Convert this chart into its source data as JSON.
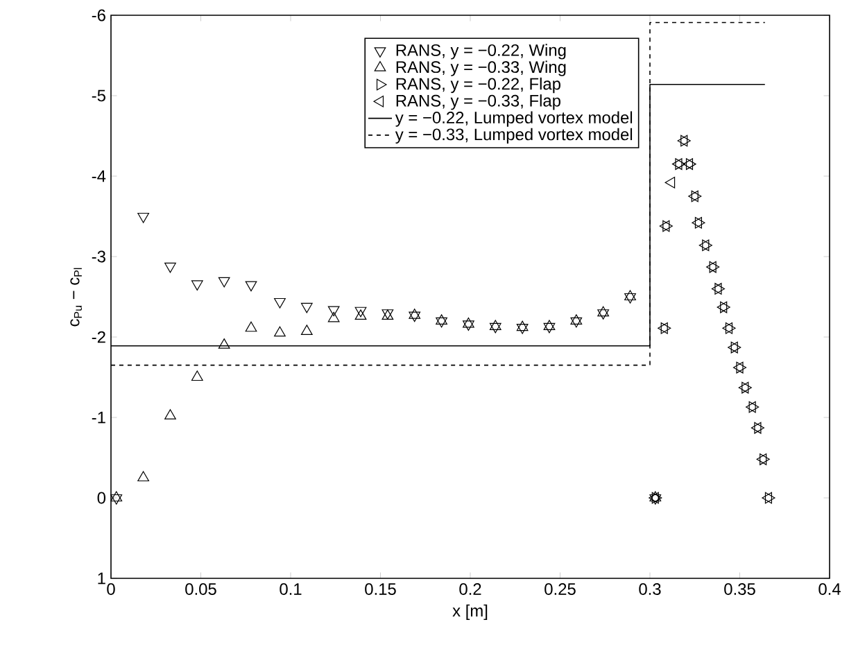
{
  "chart_data": {
    "type": "scatter",
    "xlabel": "x [m]",
    "ylabel": "c$_{Pu}$ − c$_{Pl}$",
    "xlim": [
      0,
      0.4
    ],
    "ylim": [
      1,
      -6
    ],
    "xticks": [
      0,
      0.05,
      0.1,
      0.15,
      0.2,
      0.25,
      0.3,
      0.35,
      0.4
    ],
    "yticks": [
      -6,
      -5,
      -4,
      -3,
      -2,
      -1,
      0,
      1
    ],
    "legend": "top",
    "grid": false,
    "series": [
      {
        "name": "RANS, y = −0.22, Wing",
        "color": "#000000",
        "marker": "triangle",
        "x": [
          0.003,
          0.018,
          0.033,
          0.048,
          0.063,
          0.078,
          0.094,
          0.109,
          0.124,
          0.139,
          0.154,
          0.169,
          0.184,
          0.199,
          0.214,
          0.229,
          0.244,
          0.259,
          0.274,
          0.289,
          0.303
        ],
        "values": [
          0,
          -3.5,
          -2.88,
          -2.66,
          -2.7,
          -2.65,
          -2.44,
          -2.38,
          -2.34,
          -2.33,
          -2.3,
          -2.27,
          -2.2,
          -2.16,
          -2.13,
          -2.12,
          -2.13,
          -2.2,
          -2.3,
          -2.5,
          0
        ]
      },
      {
        "name": "RANS, y = −0.33, Wing",
        "color": "#000000",
        "marker": "triangle",
        "x": [
          0.003,
          0.018,
          0.033,
          0.048,
          0.063,
          0.078,
          0.094,
          0.109,
          0.124,
          0.139,
          0.154,
          0.169,
          0.184,
          0.199,
          0.214,
          0.229,
          0.244,
          0.259,
          0.274,
          0.289,
          0.303
        ],
        "values": [
          0,
          -0.25,
          -1.02,
          -1.5,
          -1.9,
          -2.11,
          -2.05,
          -2.07,
          -2.23,
          -2.26,
          -2.26,
          -2.27,
          -2.2,
          -2.16,
          -2.13,
          -2.12,
          -2.13,
          -2.2,
          -2.3,
          -2.5,
          0
        ]
      },
      {
        "name": "RANS, y = −0.22, Flap",
        "color": "#000000",
        "marker": "triangle",
        "x": [
          0.303,
          0.308,
          0.309,
          0.316,
          0.319,
          0.322,
          0.325,
          0.327,
          0.331,
          0.335,
          0.338,
          0.341,
          0.344,
          0.347,
          0.35,
          0.353,
          0.357,
          0.36,
          0.363,
          0.366
        ],
        "values": [
          0,
          -2.11,
          -3.38,
          -4.15,
          -4.44,
          -4.15,
          -3.75,
          -3.42,
          -3.14,
          -2.87,
          -2.6,
          -2.37,
          -2.11,
          -1.87,
          -1.62,
          -1.37,
          -1.13,
          -0.87,
          -0.48,
          0
        ]
      },
      {
        "name": "RANS, y = −0.33, Flap",
        "color": "#000000",
        "marker": "triangle",
        "x": [
          0.303,
          0.308,
          0.309,
          0.312,
          0.316,
          0.319,
          0.322,
          0.325,
          0.327,
          0.331,
          0.335,
          0.338,
          0.341,
          0.344,
          0.347,
          0.35,
          0.353,
          0.357,
          0.36,
          0.363,
          0.366
        ],
        "values": [
          0,
          -2.11,
          -3.38,
          -3.92,
          -4.15,
          -4.44,
          -4.15,
          -3.75,
          -3.42,
          -3.14,
          -2.87,
          -2.6,
          -2.37,
          -2.11,
          -1.87,
          -1.62,
          -1.37,
          -1.13,
          -0.87,
          -0.48,
          0
        ]
      },
      {
        "name": "y = −0.22, Lumped vortex model",
        "type": "line",
        "color": "#000000",
        "marker": "none",
        "line_style": "solid",
        "x": [
          0,
          0.3,
          0.3,
          0.364
        ],
        "values": [
          -1.89,
          -1.89,
          -5.14,
          -5.14
        ]
      },
      {
        "name": "y = −0.33, Lumped vortex model",
        "type": "line",
        "color": "#000000",
        "marker": "none",
        "line_style": "dashed",
        "x": [
          0,
          0.3,
          0.3,
          0.364
        ],
        "values": [
          -1.65,
          -1.65,
          -5.91,
          -5.91
        ]
      }
    ]
  }
}
